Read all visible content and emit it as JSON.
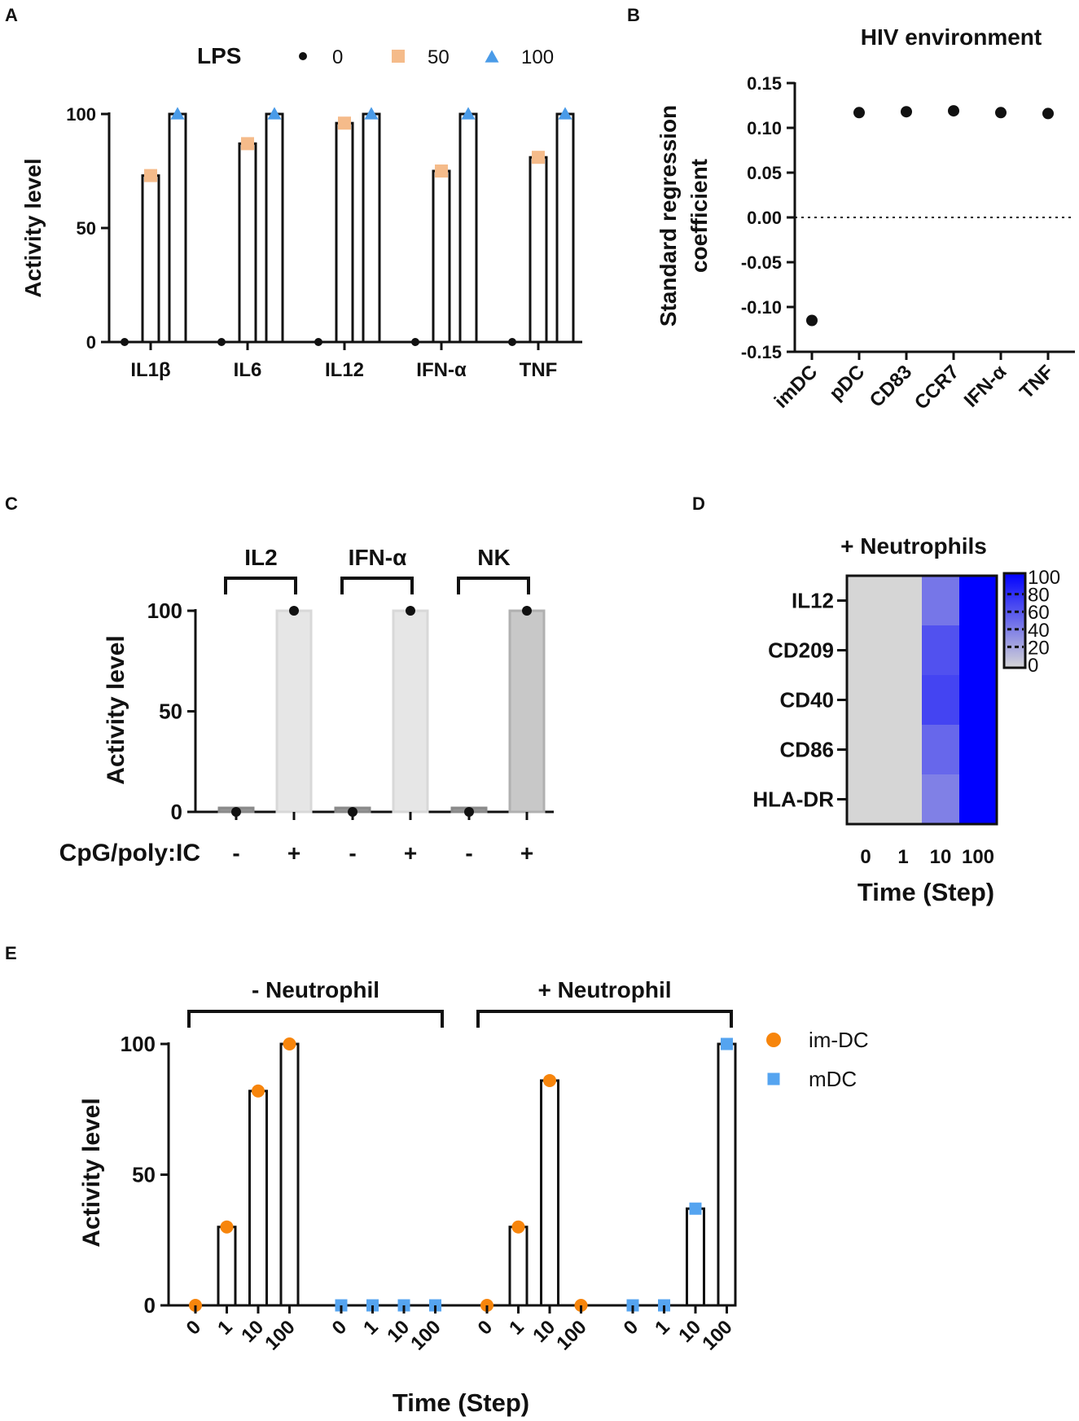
{
  "chart_data": [
    {
      "panel": "A",
      "type": "bar",
      "legend_title": "LPS",
      "legend": [
        {
          "name": "0",
          "marker": "circle",
          "color": "#111111"
        },
        {
          "name": "50",
          "marker": "square",
          "color": "#f5bb8a"
        },
        {
          "name": "100",
          "marker": "triangle",
          "color": "#4a9be8"
        }
      ],
      "categories": [
        "IL1β",
        "IL6",
        "IL12",
        "IFN-α",
        "TNF"
      ],
      "series": [
        {
          "name": "0",
          "values": [
            0,
            0,
            0,
            0,
            0
          ]
        },
        {
          "name": "50",
          "values": [
            73,
            87,
            96,
            75,
            81
          ]
        },
        {
          "name": "100",
          "values": [
            100,
            100,
            100,
            100,
            100
          ]
        }
      ],
      "ylabel": "Activity level",
      "ylim": [
        0,
        100
      ],
      "yticks": [
        0,
        50,
        100
      ]
    },
    {
      "panel": "B",
      "type": "scatter",
      "title": "HIV environment",
      "categories": [
        "imDC",
        "pDC",
        "CD83",
        "CCR7",
        "IFN-α",
        "TNF"
      ],
      "values": [
        -0.115,
        0.117,
        0.118,
        0.119,
        0.117,
        0.116
      ],
      "ylabel": "Standard regression coefficient",
      "ylim": [
        -0.15,
        0.15
      ],
      "yticks": [
        "-0.15",
        "-0.10",
        "-0.05",
        "0.00",
        "0.05",
        "0.10",
        "0.15"
      ],
      "reference_line": 0
    },
    {
      "panel": "C",
      "type": "bar",
      "groups": [
        "IL2",
        "IFN-α",
        "NK"
      ],
      "treatment_label": "CpG/poly:IC",
      "treatment_levels": [
        "-",
        "+"
      ],
      "values": [
        [
          2,
          100
        ],
        [
          2,
          100
        ],
        [
          2,
          100
        ]
      ],
      "bar_colors": [
        "#8a8a8a",
        "#e6e6e6",
        "#8a8a8a",
        "#e6e6e6",
        "#8a8a8a",
        "#c8c8c8"
      ],
      "ylabel": "Activity level",
      "ylim": [
        0,
        100
      ],
      "yticks": [
        0,
        50,
        100
      ]
    },
    {
      "panel": "D",
      "type": "heatmap",
      "title": "+ Neutrophils",
      "rows": [
        "IL12",
        "CD209",
        "CD40",
        "CD86",
        "HLA-DR"
      ],
      "columns": [
        "0",
        "1",
        "10",
        "100"
      ],
      "values": [
        [
          0,
          0,
          45,
          100
        ],
        [
          0,
          0,
          62,
          100
        ],
        [
          0,
          0,
          68,
          100
        ],
        [
          0,
          0,
          52,
          100
        ],
        [
          0,
          0,
          40,
          100
        ]
      ],
      "xlabel": "Time (Step)",
      "colorbar_ticks": [
        "0",
        "20",
        "40",
        "60",
        "80",
        "100"
      ],
      "colorscale": [
        "#d6d6d6",
        "#0000ff"
      ]
    },
    {
      "panel": "E",
      "type": "bar",
      "legend": [
        {
          "name": "im-DC",
          "marker": "circle",
          "color": "#f7850c"
        },
        {
          "name": "mDC",
          "marker": "square",
          "color": "#55a4f0"
        }
      ],
      "groups": [
        {
          "name": "- Neutrophil",
          "imDC": [
            0,
            30,
            82,
            100
          ],
          "mDC": [
            0,
            0,
            0,
            0
          ]
        },
        {
          "name": "+ Neutrophil",
          "imDC": [
            0,
            30,
            86,
            0
          ],
          "mDC": [
            0,
            0,
            37,
            100
          ]
        }
      ],
      "time_steps": [
        "0",
        "1",
        "10",
        "100"
      ],
      "xlabel": "Time (Step)",
      "ylabel": "Activity level",
      "ylim": [
        0,
        100
      ],
      "yticks": [
        0,
        50,
        100
      ]
    }
  ]
}
